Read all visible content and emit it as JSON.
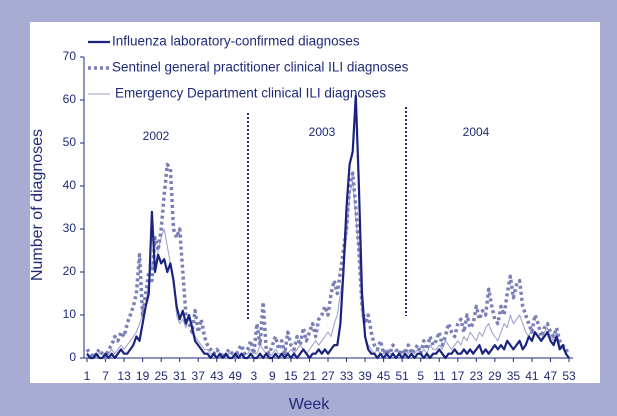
{
  "chart_data": {
    "type": "line",
    "x_label": "Week",
    "y_label": "Number of diagnoses",
    "annotations": [
      "2002",
      "2003",
      "2004"
    ],
    "categories": [
      "1",
      null,
      null,
      null,
      null,
      null,
      "7",
      null,
      null,
      null,
      null,
      null,
      "13",
      null,
      null,
      null,
      null,
      null,
      "19",
      null,
      null,
      null,
      null,
      null,
      "25",
      null,
      null,
      null,
      null,
      null,
      "31",
      null,
      null,
      null,
      null,
      null,
      "37",
      null,
      null,
      null,
      null,
      null,
      "43",
      null,
      null,
      null,
      null,
      null,
      "49",
      null,
      null,
      null,
      null,
      null,
      "3",
      null,
      null,
      null,
      null,
      null,
      "9",
      null,
      null,
      null,
      null,
      null,
      "15",
      null,
      null,
      null,
      null,
      null,
      "21",
      null,
      null,
      null,
      null,
      null,
      "27",
      null,
      null,
      null,
      null,
      null,
      "33",
      null,
      null,
      null,
      null,
      null,
      "39",
      null,
      null,
      null,
      null,
      null,
      "45",
      null,
      null,
      null,
      null,
      null,
      "51",
      null,
      null,
      null,
      null,
      null,
      "5",
      null,
      null,
      null,
      null,
      null,
      "11",
      null,
      null,
      null,
      null,
      null,
      "17",
      null,
      null,
      null,
      null,
      null,
      "23",
      null,
      null,
      null,
      null,
      null,
      "29",
      null,
      null,
      null,
      null,
      null,
      "35",
      null,
      null,
      null,
      null,
      null,
      "41",
      null,
      null,
      null,
      null,
      null,
      "47",
      null,
      null,
      null,
      null,
      null,
      "53"
    ],
    "series": [
      {
        "name": "Influenza laboratory-confirmed diagnoses",
        "color": "#1a237e",
        "values": [
          1,
          0,
          0,
          1,
          0,
          0,
          1,
          0,
          1,
          0,
          1,
          2,
          1,
          1,
          2,
          3,
          5,
          4,
          8,
          12,
          15,
          34,
          20,
          24,
          22,
          23,
          20,
          22,
          18,
          12,
          9,
          11,
          8,
          10,
          7,
          4,
          3,
          2,
          1,
          1,
          0,
          1,
          0,
          1,
          0,
          1,
          0,
          0,
          1,
          0,
          1,
          0,
          0,
          1,
          0,
          0,
          1,
          0,
          1,
          0,
          0,
          1,
          0,
          1,
          0,
          1,
          0,
          1,
          0,
          1,
          2,
          1,
          0,
          1,
          1,
          2,
          1,
          2,
          1,
          2,
          3,
          3,
          8,
          20,
          35,
          45,
          48,
          61,
          40,
          15,
          5,
          2,
          1,
          1,
          0,
          1,
          0,
          1,
          0,
          1,
          0,
          1,
          0,
          1,
          0,
          1,
          0,
          1,
          1,
          0,
          1,
          0,
          1,
          1,
          2,
          1,
          0,
          1,
          1,
          2,
          1,
          1,
          2,
          1,
          2,
          1,
          2,
          3,
          1,
          2,
          1,
          2,
          3,
          2,
          3,
          2,
          4,
          3,
          2,
          3,
          4,
          2,
          3,
          5,
          4,
          6,
          5,
          4,
          5,
          6,
          4,
          3,
          5,
          2,
          3,
          1,
          0
        ]
      },
      {
        "name": "Sentinel general practitioner clinical ILI diagnoses",
        "color": "#7a7fb8",
        "values": [
          2,
          1,
          0,
          1,
          2,
          1,
          0,
          2,
          3,
          5,
          4,
          6,
          5,
          8,
          10,
          12,
          15,
          24,
          10,
          15,
          20,
          18,
          28,
          25,
          30,
          38,
          45,
          44,
          30,
          28,
          30,
          20,
          10,
          8,
          6,
          11,
          6,
          9,
          5,
          3,
          2,
          1,
          2,
          1,
          0,
          1,
          2,
          1,
          0,
          2,
          3,
          1,
          2,
          4,
          1,
          8,
          3,
          13,
          2,
          1,
          3,
          5,
          2,
          4,
          1,
          6,
          3,
          2,
          5,
          3,
          7,
          4,
          6,
          8,
          5,
          9,
          10,
          12,
          10,
          15,
          18,
          15,
          20,
          25,
          30,
          40,
          43,
          35,
          25,
          12,
          8,
          10,
          6,
          3,
          2,
          4,
          1,
          2,
          1,
          3,
          2,
          1,
          2,
          1,
          3,
          1,
          2,
          3,
          1,
          4,
          2,
          5,
          3,
          4,
          6,
          3,
          5,
          8,
          6,
          5,
          8,
          9,
          6,
          10,
          7,
          8,
          12,
          9,
          11,
          10,
          16,
          12,
          9,
          8,
          12,
          10,
          15,
          19,
          14,
          17,
          18,
          12,
          10,
          8,
          6,
          10,
          8,
          5,
          7,
          8,
          6,
          5,
          7,
          4,
          3,
          2,
          1
        ]
      },
      {
        "name": "Emergency Department clinical ILI diagnoses",
        "color": "#9a9dcc",
        "values": [
          1,
          0,
          1,
          0,
          1,
          1,
          0,
          1,
          2,
          1,
          2,
          3,
          2,
          3,
          4,
          5,
          6,
          8,
          10,
          12,
          18,
          22,
          20,
          25,
          28,
          30,
          26,
          22,
          18,
          10,
          8,
          9,
          7,
          10,
          8,
          5,
          4,
          3,
          2,
          2,
          1,
          1,
          0,
          1,
          1,
          0,
          1,
          1,
          0,
          1,
          0,
          1,
          1,
          2,
          1,
          1,
          3,
          2,
          1,
          0,
          1,
          2,
          1,
          1,
          2,
          1,
          2,
          1,
          2,
          3,
          2,
          1,
          2,
          3,
          4,
          3,
          4,
          5,
          6,
          5,
          8,
          10,
          15,
          20,
          28,
          38,
          41,
          33,
          25,
          10,
          5,
          3,
          2,
          1,
          2,
          1,
          1,
          2,
          1,
          1,
          2,
          1,
          1,
          2,
          1,
          2,
          1,
          2,
          1,
          2,
          1,
          3,
          2,
          2,
          3,
          2,
          4,
          3,
          2,
          3,
          4,
          3,
          5,
          4,
          6,
          5,
          4,
          6,
          5,
          7,
          8,
          6,
          5,
          4,
          6,
          8,
          7,
          10,
          8,
          9,
          10,
          8,
          6,
          5,
          7,
          6,
          5,
          4,
          6,
          7,
          5,
          4,
          6,
          3,
          2,
          1,
          0
        ]
      }
    ],
    "ylim": [
      0,
      70
    ],
    "yticks": [
      0,
      10,
      20,
      30,
      40,
      50,
      60,
      70
    ]
  }
}
